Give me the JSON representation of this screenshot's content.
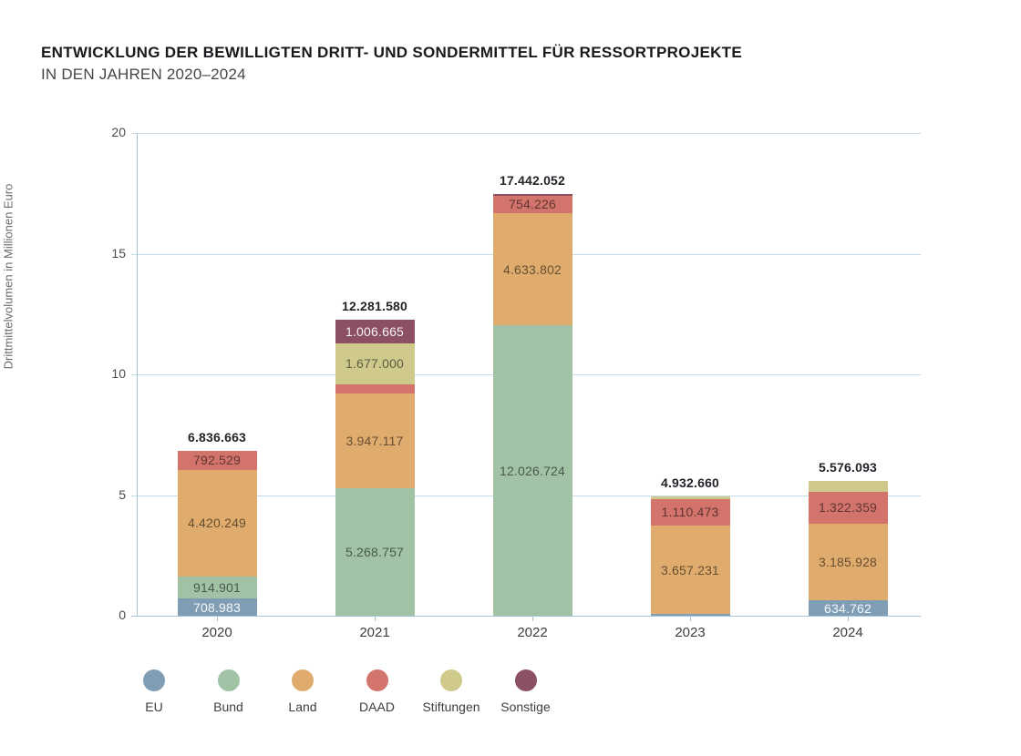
{
  "chart_data": {
    "type": "bar",
    "stacked": true,
    "title": "ENTWICKLUNG DER BEWILLIGTEN DRITT- UND SONDERMITTEL FÜR RESSORTPROJEKTE",
    "subtitle": "IN DEN JAHREN 2020–2024",
    "ylabel": "Drittmittelvolumen in Millionen Euro",
    "xlabel": "",
    "ylim": [
      0,
      20
    ],
    "yticks": [
      0,
      5,
      10,
      15,
      20
    ],
    "grid": true,
    "legend_position": "bottom-left",
    "categories": [
      "2020",
      "2021",
      "2022",
      "2023",
      "2024"
    ],
    "series": [
      {
        "name": "EU",
        "color": "#7f9eb6",
        "label_style": "light",
        "values": [
          708983,
          0,
          0,
          54956,
          634762
        ],
        "value_labels": [
          "708.983",
          "",
          "",
          "",
          "634.762"
        ]
      },
      {
        "name": "Bund",
        "color": "#a1c2a5",
        "label_style": "dark",
        "values": [
          914901,
          5268757,
          12026724,
          0,
          0
        ],
        "value_labels": [
          "914.901",
          "5.268.757",
          "12.026.724",
          "",
          ""
        ]
      },
      {
        "name": "Land",
        "color": "#dfac6d",
        "label_style": "dark",
        "values": [
          4420249,
          3947117,
          4633802,
          3657231,
          3185928
        ],
        "value_labels": [
          "4.420.249",
          "3.947.117",
          "4.633.802",
          "3.657.231",
          "3.185.928"
        ]
      },
      {
        "name": "DAAD",
        "color": "#d3746c",
        "label_style": "dark",
        "values": [
          792529,
          382041,
          754226,
          1110473,
          1322359
        ],
        "value_labels": [
          "792.529",
          "",
          "754.226",
          "1.110.473",
          "1.322.359"
        ]
      },
      {
        "name": "Stiftungen",
        "color": "#cfc98c",
        "label_style": "dark",
        "values": [
          0,
          1677000,
          0,
          110000,
          433044
        ],
        "value_labels": [
          "",
          "1.677.000",
          "",
          "",
          ""
        ]
      },
      {
        "name": "Sonstige",
        "color": "#8c5064",
        "label_style": "light",
        "values": [
          0,
          1006665,
          27300,
          0,
          0
        ],
        "value_labels": [
          "",
          "1.006.665",
          "",
          "",
          ""
        ]
      }
    ],
    "totals": [
      "6.836.663",
      "12.281.580",
      "17.442.052",
      "4.932.660",
      "5.576.093"
    ],
    "legend": [
      "EU",
      "Bund",
      "Land",
      "DAAD",
      "Stiftungen",
      "Sonstige"
    ],
    "colors": {
      "axis_line": "#a7c4d9",
      "grid_line": "#c7dae8",
      "tick_label": "#4b4b4b",
      "segment_label_dark": "rgba(0,0,0,0.55)",
      "segment_label_light": "rgba(255,255,255,0.93)",
      "total_label": "#1f2328",
      "title": "#17191c",
      "subtitle": "#43464b"
    }
  }
}
